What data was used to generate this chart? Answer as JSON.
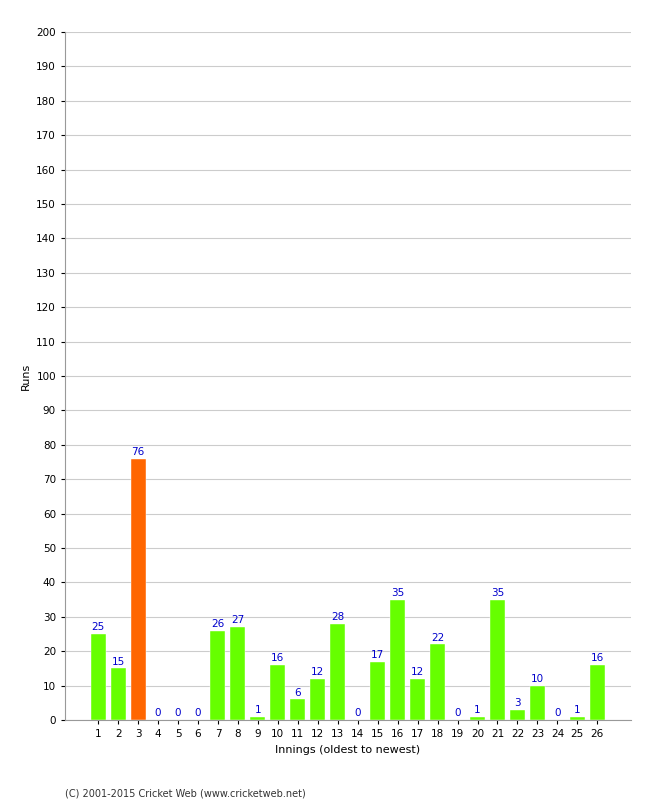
{
  "xlabel": "Innings (oldest to newest)",
  "ylabel": "Runs",
  "categories": [
    1,
    2,
    3,
    4,
    5,
    6,
    7,
    8,
    9,
    10,
    11,
    12,
    13,
    14,
    15,
    16,
    17,
    18,
    19,
    20,
    21,
    22,
    23,
    24,
    25,
    26
  ],
  "values": [
    25,
    15,
    76,
    0,
    0,
    0,
    26,
    27,
    1,
    16,
    6,
    12,
    28,
    0,
    17,
    35,
    12,
    22,
    0,
    1,
    35,
    3,
    10,
    0,
    1,
    16
  ],
  "bar_colors": [
    "#66ff00",
    "#66ff00",
    "#ff6600",
    "#66ff00",
    "#66ff00",
    "#66ff00",
    "#66ff00",
    "#66ff00",
    "#66ff00",
    "#66ff00",
    "#66ff00",
    "#66ff00",
    "#66ff00",
    "#66ff00",
    "#66ff00",
    "#66ff00",
    "#66ff00",
    "#66ff00",
    "#66ff00",
    "#66ff00",
    "#66ff00",
    "#66ff00",
    "#66ff00",
    "#66ff00",
    "#66ff00",
    "#66ff00"
  ],
  "ylim": [
    0,
    200
  ],
  "yticks": [
    0,
    10,
    20,
    30,
    40,
    50,
    60,
    70,
    80,
    90,
    100,
    110,
    120,
    130,
    140,
    150,
    160,
    170,
    180,
    190,
    200
  ],
  "label_color": "#0000cc",
  "label_fontsize": 7.5,
  "axis_label_fontsize": 8,
  "tick_fontsize": 7.5,
  "footer": "(C) 2001-2015 Cricket Web (www.cricketweb.net)",
  "background_color": "#ffffff",
  "grid_color": "#cccccc",
  "bar_width": 0.75
}
